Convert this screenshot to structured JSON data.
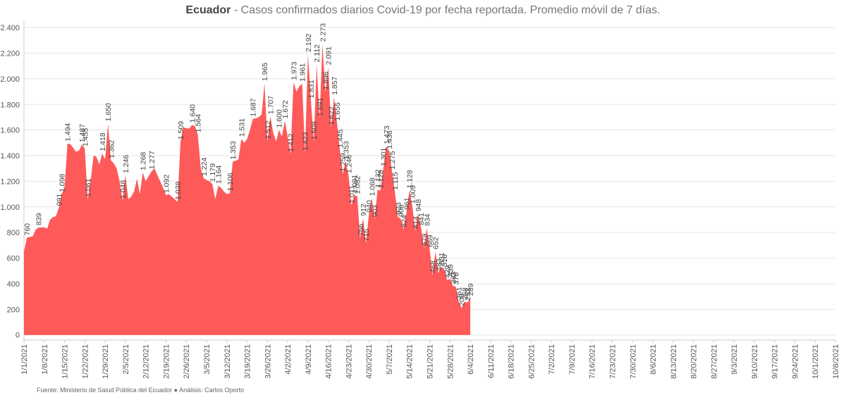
{
  "header": {
    "title_strong": "Ecuador",
    "title_rest": " - Casos confirmados diarios Covid-19 por fecha reportada. Promedio móvil de 7 días."
  },
  "footer": {
    "source_text": "Fuente: Ministerio de Salud Pública del Ecuador",
    "separator": "●",
    "analysis_text": "Análisis: Carlos Oporto"
  },
  "chart_data": {
    "type": "area",
    "title": "Ecuador - Casos confirmados diarios Covid-19 por fecha reportada. Promedio móvil de 7 días.",
    "xlabel": "",
    "ylabel": "",
    "color": "#ff5a5a",
    "ylim": [
      -40,
      2450
    ],
    "x_range": [
      "2021-01-01",
      "2021-10-08"
    ],
    "y_ticks": [
      0,
      200,
      400,
      600,
      800,
      1000,
      1200,
      1400,
      1600,
      1800,
      2000,
      2200,
      2400
    ],
    "y_tick_labels": [
      "0",
      "200",
      "400",
      "600",
      "800",
      "1.000",
      "1.200",
      "1.400",
      "1.600",
      "1.800",
      "2.000",
      "2.200",
      "2.400"
    ],
    "x_ticks": [
      "2021-01-01",
      "2021-01-08",
      "2021-01-15",
      "2021-01-22",
      "2021-01-29",
      "2021-02-05",
      "2021-02-12",
      "2021-02-19",
      "2021-02-26",
      "2021-03-05",
      "2021-03-12",
      "2021-03-19",
      "2021-03-26",
      "2021-04-02",
      "2021-04-09",
      "2021-04-16",
      "2021-04-23",
      "2021-04-30",
      "2021-05-07",
      "2021-05-14",
      "2021-05-21",
      "2021-05-28",
      "2021-06-04",
      "2021-06-11",
      "2021-06-18",
      "2021-06-25",
      "2021-07-02",
      "2021-07-09",
      "2021-07-16",
      "2021-07-23",
      "2021-07-30",
      "2021-08-06",
      "2021-08-13",
      "2021-08-20",
      "2021-08-27",
      "2021-09-03",
      "2021-09-10",
      "2021-09-17",
      "2021-09-24",
      "2021-10-01",
      "2021-10-08"
    ],
    "x_tick_labels": [
      "1/1/2021",
      "1/8/2021",
      "1/15/2021",
      "1/22/2021",
      "1/29/2021",
      "2/5/2021",
      "2/12/2021",
      "2/19/2021",
      "2/26/2021",
      "3/5/2021",
      "3/12/2021",
      "3/19/2021",
      "3/26/2021",
      "4/2/2021",
      "4/9/2021",
      "4/16/2021",
      "4/23/2021",
      "4/30/2021",
      "5/7/2021",
      "5/14/2021",
      "5/21/2021",
      "5/28/2021",
      "6/4/2021",
      "6/11/2021",
      "6/18/2021",
      "6/25/2021",
      "7/2/2021",
      "7/9/2021",
      "7/16/2021",
      "7/23/2021",
      "7/30/2021",
      "8/6/2021",
      "8/13/2021",
      "8/20/2021",
      "8/27/2021",
      "9/3/2021",
      "9/10/2021",
      "9/17/2021",
      "9/24/2021",
      "10/1/2021",
      "10/8/2021"
    ],
    "series": [
      {
        "points": [
          [
            "2021-01-01",
            650
          ],
          [
            "2021-01-02",
            760
          ],
          [
            "2021-01-04",
            770
          ],
          [
            "2021-01-05",
            820
          ],
          [
            "2021-01-06",
            839
          ],
          [
            "2021-01-08",
            840
          ],
          [
            "2021-01-09",
            830
          ],
          [
            "2021-01-10",
            900
          ],
          [
            "2021-01-11",
            920
          ],
          [
            "2021-01-12",
            925
          ],
          [
            "2021-01-13",
            991
          ],
          [
            "2021-01-14",
            1098
          ],
          [
            "2021-01-15",
            1150
          ],
          [
            "2021-01-16",
            1494
          ],
          [
            "2021-01-17",
            1490
          ],
          [
            "2021-01-18",
            1460
          ],
          [
            "2021-01-19",
            1430
          ],
          [
            "2021-01-20",
            1440
          ],
          [
            "2021-01-21",
            1487
          ],
          [
            "2021-01-22",
            1455
          ],
          [
            "2021-01-23",
            1061
          ],
          [
            "2021-01-24",
            1200
          ],
          [
            "2021-01-25",
            1400
          ],
          [
            "2021-01-26",
            1390
          ],
          [
            "2021-01-27",
            1330
          ],
          [
            "2021-01-28",
            1418
          ],
          [
            "2021-01-29",
            1370
          ],
          [
            "2021-01-30",
            1650
          ],
          [
            "2021-01-31",
            1362
          ],
          [
            "2021-02-01",
            1340
          ],
          [
            "2021-02-02",
            1300
          ],
          [
            "2021-02-03",
            1200
          ],
          [
            "2021-02-04",
            1048
          ],
          [
            "2021-02-05",
            1246
          ],
          [
            "2021-02-06",
            1060
          ],
          [
            "2021-02-07",
            1080
          ],
          [
            "2021-02-08",
            1120
          ],
          [
            "2021-02-09",
            1220
          ],
          [
            "2021-02-10",
            1100
          ],
          [
            "2021-02-11",
            1268
          ],
          [
            "2021-02-12",
            1200
          ],
          [
            "2021-02-13",
            1240
          ],
          [
            "2021-02-14",
            1277
          ],
          [
            "2021-02-15",
            1300
          ],
          [
            "2021-02-16",
            1250
          ],
          [
            "2021-02-17",
            1200
          ],
          [
            "2021-02-18",
            1150
          ],
          [
            "2021-02-19",
            1092
          ],
          [
            "2021-02-20",
            1100
          ],
          [
            "2021-02-22",
            1060
          ],
          [
            "2021-02-23",
            1038
          ],
          [
            "2021-02-24",
            1509
          ],
          [
            "2021-02-25",
            1620
          ],
          [
            "2021-02-27",
            1610
          ],
          [
            "2021-02-28",
            1640
          ],
          [
            "2021-03-01",
            1630
          ],
          [
            "2021-03-02",
            1564
          ],
          [
            "2021-03-03",
            1300
          ],
          [
            "2021-03-04",
            1224
          ],
          [
            "2021-03-05",
            1210
          ],
          [
            "2021-03-06",
            1200
          ],
          [
            "2021-03-07",
            1179
          ],
          [
            "2021-03-08",
            1060
          ],
          [
            "2021-03-09",
            1164
          ],
          [
            "2021-03-10",
            1150
          ],
          [
            "2021-03-11",
            1120
          ],
          [
            "2021-03-12",
            1100
          ],
          [
            "2021-03-13",
            1106
          ],
          [
            "2021-03-14",
            1353
          ],
          [
            "2021-03-15",
            1360
          ],
          [
            "2021-03-16",
            1370
          ],
          [
            "2021-03-17",
            1531
          ],
          [
            "2021-03-18",
            1500
          ],
          [
            "2021-03-19",
            1530
          ],
          [
            "2021-03-20",
            1600
          ],
          [
            "2021-03-21",
            1687
          ],
          [
            "2021-03-22",
            1690
          ],
          [
            "2021-03-23",
            1700
          ],
          [
            "2021-03-24",
            1720
          ],
          [
            "2021-03-25",
            1965
          ],
          [
            "2021-03-26",
            1512
          ],
          [
            "2021-03-27",
            1707
          ],
          [
            "2021-03-28",
            1580
          ],
          [
            "2021-03-29",
            1510
          ],
          [
            "2021-03-30",
            1600
          ],
          [
            "2021-03-31",
            1550
          ],
          [
            "2021-04-01",
            1672
          ],
          [
            "2021-04-02",
            1550
          ],
          [
            "2021-04-03",
            1412
          ],
          [
            "2021-04-04",
            1973
          ],
          [
            "2021-04-05",
            1900
          ],
          [
            "2021-04-06",
            1940
          ],
          [
            "2021-04-07",
            1961
          ],
          [
            "2021-04-08",
            1423
          ],
          [
            "2021-04-09",
            2192
          ],
          [
            "2021-04-10",
            1831
          ],
          [
            "2021-04-11",
            1508
          ],
          [
            "2021-04-12",
            2112
          ],
          [
            "2021-04-13",
            1691
          ],
          [
            "2021-04-14",
            2273
          ],
          [
            "2021-04-15",
            1896
          ],
          [
            "2021-04-16",
            2091
          ],
          [
            "2021-04-17",
            1622
          ],
          [
            "2021-04-18",
            1857
          ],
          [
            "2021-04-19",
            1655
          ],
          [
            "2021-04-20",
            1445
          ],
          [
            "2021-04-21",
            1259
          ],
          [
            "2021-04-22",
            1353
          ],
          [
            "2021-04-23",
            1246
          ],
          [
            "2021-04-24",
            1011
          ],
          [
            "2021-04-25",
            1091
          ],
          [
            "2021-04-26",
            1082
          ],
          [
            "2021-04-27",
            756
          ],
          [
            "2021-04-28",
            912
          ],
          [
            "2021-04-29",
            715
          ],
          [
            "2021-04-30",
            940
          ],
          [
            "2021-05-01",
            1068
          ],
          [
            "2021-05-02",
            903
          ],
          [
            "2021-05-03",
            1132
          ],
          [
            "2021-05-04",
            1128
          ],
          [
            "2021-05-05",
            1301
          ],
          [
            "2021-05-06",
            1473
          ],
          [
            "2021-05-07",
            1436
          ],
          [
            "2021-05-08",
            1275
          ],
          [
            "2021-05-09",
            1115
          ],
          [
            "2021-05-10",
            923
          ],
          [
            "2021-05-11",
            906
          ],
          [
            "2021-05-12",
            824
          ],
          [
            "2021-05-13",
            961
          ],
          [
            "2021-05-14",
            1128
          ],
          [
            "2021-05-15",
            1009
          ],
          [
            "2021-05-16",
            814
          ],
          [
            "2021-05-17",
            948
          ],
          [
            "2021-05-18",
            841
          ],
          [
            "2021-05-19",
            679
          ],
          [
            "2021-05-20",
            834
          ],
          [
            "2021-05-21",
            669
          ],
          [
            "2021-05-22",
            468
          ],
          [
            "2021-05-23",
            652
          ],
          [
            "2021-05-24",
            483
          ],
          [
            "2021-05-25",
            531
          ],
          [
            "2021-05-26",
            516
          ],
          [
            "2021-05-27",
            429
          ],
          [
            "2021-05-28",
            439
          ],
          [
            "2021-05-29",
            383
          ],
          [
            "2021-05-30",
            376
          ],
          [
            "2021-05-31",
            261
          ],
          [
            "2021-06-01",
            209
          ],
          [
            "2021-06-02",
            258
          ],
          [
            "2021-06-03",
            253
          ],
          [
            "2021-06-04",
            289
          ]
        ]
      }
    ],
    "data_labels": [
      [
        "760",
        "2021-01-02",
        760
      ],
      [
        "839",
        "2021-01-06",
        839
      ],
      [
        "991",
        "2021-01-13",
        991
      ],
      [
        "1.098",
        "2021-01-14",
        1098
      ],
      [
        "1.494",
        "2021-01-16",
        1494
      ],
      [
        "1.487",
        "2021-01-21",
        1487
      ],
      [
        "1.061",
        "2021-01-23",
        1061
      ],
      [
        "1.455",
        "2021-01-22",
        1455
      ],
      [
        "1.418",
        "2021-01-28",
        1418
      ],
      [
        "1.650",
        "2021-01-30",
        1650
      ],
      [
        "1.362",
        "2021-01-31",
        1362
      ],
      [
        "1.048",
        "2021-02-04",
        1048
      ],
      [
        "1.246",
        "2021-02-05",
        1246
      ],
      [
        "1.268",
        "2021-02-11",
        1268
      ],
      [
        "1.277",
        "2021-02-14",
        1277
      ],
      [
        "1.092",
        "2021-02-19",
        1092
      ],
      [
        "1.038",
        "2021-02-23",
        1038
      ],
      [
        "1.509",
        "2021-02-24",
        1509
      ],
      [
        "1.640",
        "2021-02-28",
        1640
      ],
      [
        "1.564",
        "2021-03-02",
        1564
      ],
      [
        "1.224",
        "2021-03-04",
        1224
      ],
      [
        "1.179",
        "2021-03-07",
        1179
      ],
      [
        "1.164",
        "2021-03-09",
        1164
      ],
      [
        "1.106",
        "2021-03-13",
        1106
      ],
      [
        "1.353",
        "2021-03-14",
        1353
      ],
      [
        "1.531",
        "2021-03-17",
        1531
      ],
      [
        "1.687",
        "2021-03-21",
        1687
      ],
      [
        "1.965",
        "2021-03-25",
        1965
      ],
      [
        "1.512",
        "2021-03-26",
        1512
      ],
      [
        "1.707",
        "2021-03-27",
        1707
      ],
      [
        "1.600",
        "2021-03-30",
        1600
      ],
      [
        "1.672",
        "2021-04-01",
        1672
      ],
      [
        "1.412",
        "2021-04-03",
        1412
      ],
      [
        "1.973",
        "2021-04-04",
        1973
      ],
      [
        "1.961",
        "2021-04-07",
        1961
      ],
      [
        "1.423",
        "2021-04-08",
        1423
      ],
      [
        "2.192",
        "2021-04-09",
        2192
      ],
      [
        "1.831",
        "2021-04-10",
        1831
      ],
      [
        "1.508",
        "2021-04-11",
        1508
      ],
      [
        "2.112",
        "2021-04-12",
        2112
      ],
      [
        "1.691",
        "2021-04-13",
        1691
      ],
      [
        "2.273",
        "2021-04-14",
        2273
      ],
      [
        "1.896",
        "2021-04-15",
        1896
      ],
      [
        "2.091",
        "2021-04-16",
        2091
      ],
      [
        "1.622",
        "2021-04-17",
        1622
      ],
      [
        "1.857",
        "2021-04-18",
        1857
      ],
      [
        "1.655",
        "2021-04-19",
        1655
      ],
      [
        "1.445",
        "2021-04-20",
        1445
      ],
      [
        "1.259",
        "2021-04-21",
        1259
      ],
      [
        "1.353",
        "2021-04-22",
        1353
      ],
      [
        "1.246",
        "2021-04-23",
        1246
      ],
      [
        "1.011",
        "2021-04-24",
        1011
      ],
      [
        "1.091",
        "2021-04-25",
        1091
      ],
      [
        "1.082",
        "2021-04-26",
        1082
      ],
      [
        "756",
        "2021-04-27",
        756
      ],
      [
        "912",
        "2021-04-28",
        912
      ],
      [
        "715",
        "2021-04-29",
        715
      ],
      [
        "940",
        "2021-04-30",
        940
      ],
      [
        "1.068",
        "2021-05-01",
        1068
      ],
      [
        "903",
        "2021-05-02",
        903
      ],
      [
        "1.132",
        "2021-05-03",
        1132
      ],
      [
        "1.128",
        "2021-05-04",
        1128
      ],
      [
        "1.301",
        "2021-05-05",
        1301
      ],
      [
        "1.473",
        "2021-05-06",
        1473
      ],
      [
        "1.436",
        "2021-05-07",
        1436
      ],
      [
        "1.275",
        "2021-05-08",
        1275
      ],
      [
        "1.115",
        "2021-05-09",
        1115
      ],
      [
        "923",
        "2021-05-10",
        923
      ],
      [
        "906",
        "2021-05-11",
        906
      ],
      [
        "824",
        "2021-05-12",
        824
      ],
      [
        "961",
        "2021-05-13",
        961
      ],
      [
        "1.128",
        "2021-05-14",
        1128
      ],
      [
        "1.009",
        "2021-05-15",
        1009
      ],
      [
        "814",
        "2021-05-16",
        814
      ],
      [
        "948",
        "2021-05-17",
        948
      ],
      [
        "841",
        "2021-05-18",
        841
      ],
      [
        "679",
        "2021-05-19",
        679
      ],
      [
        "834",
        "2021-05-20",
        834
      ],
      [
        "669",
        "2021-05-21",
        669
      ],
      [
        "468",
        "2021-05-22",
        468
      ],
      [
        "652",
        "2021-05-23",
        652
      ],
      [
        "483",
        "2021-05-24",
        483
      ],
      [
        "531",
        "2021-05-25",
        531
      ],
      [
        "516",
        "2021-05-26",
        516
      ],
      [
        "429",
        "2021-05-27",
        429
      ],
      [
        "439",
        "2021-05-28",
        439
      ],
      [
        "383",
        "2021-05-29",
        383
      ],
      [
        "376",
        "2021-05-30",
        376
      ],
      [
        "261",
        "2021-05-31",
        261
      ],
      [
        "209",
        "2021-06-01",
        209
      ],
      [
        "258",
        "2021-06-02",
        258
      ],
      [
        "253",
        "2021-06-03",
        253
      ],
      [
        "289",
        "2021-06-04",
        289
      ]
    ]
  }
}
